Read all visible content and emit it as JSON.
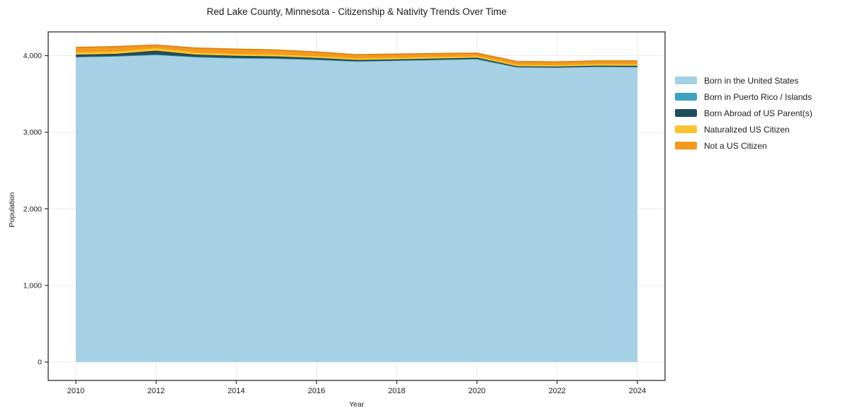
{
  "chart_data": {
    "type": "area",
    "stacked": true,
    "title": "Red Lake County, Minnesota - Citizenship & Nativity Trends Over Time",
    "xlabel": "Year",
    "ylabel": "Population",
    "grid": true,
    "legend_position": "right",
    "x": [
      2010,
      2011,
      2012,
      2013,
      2014,
      2015,
      2016,
      2017,
      2018,
      2019,
      2020,
      2021,
      2022,
      2023,
      2024
    ],
    "series": [
      {
        "name": "Born in the United States",
        "color": "#a6d0e4",
        "line_color": "#86bcd6",
        "values": [
          3985,
          3995,
          4015,
          3985,
          3970,
          3965,
          3950,
          3928,
          3938,
          3948,
          3958,
          3852,
          3848,
          3858,
          3855
        ]
      },
      {
        "name": "Born in Puerto Rico / Islands",
        "color": "#3ea1c0",
        "line_color": "#338aa6",
        "values": [
          0,
          0,
          0,
          0,
          0,
          0,
          0,
          0,
          0,
          0,
          0,
          0,
          0,
          0,
          0
        ]
      },
      {
        "name": "Born Abroad of US Parent(s)",
        "color": "#204e5e",
        "line_color": "#173a47",
        "values": [
          28,
          28,
          50,
          28,
          28,
          25,
          20,
          15,
          14,
          14,
          16,
          10,
          10,
          12,
          12
        ]
      },
      {
        "name": "Naturalized US Citizen",
        "color": "#fcc330",
        "line_color": "#e2a616",
        "values": [
          36,
          38,
          38,
          34,
          32,
          32,
          30,
          28,
          28,
          28,
          26,
          26,
          25,
          25,
          28
        ]
      },
      {
        "name": "Not a US Citizen",
        "color": "#f5981f",
        "line_color": "#da820e",
        "values": [
          58,
          58,
          35,
          52,
          55,
          52,
          48,
          42,
          40,
          38,
          32,
          36,
          36,
          36,
          36
        ]
      }
    ],
    "x_ticks": {
      "values": [
        2010,
        2012,
        2014,
        2016,
        2018,
        2020,
        2022,
        2024
      ],
      "labels": [
        "2010",
        "2012",
        "2014",
        "2016",
        "2018",
        "2020",
        "2022",
        "2024"
      ]
    },
    "y_ticks": {
      "values": [
        0,
        1000,
        2000,
        3000,
        4000
      ],
      "labels": [
        "0",
        "1,000",
        "2,000",
        "3,000",
        "4,000"
      ]
    },
    "x_range": [
      2009.31,
      2024.69
    ],
    "y_range": [
      -240,
      4310
    ],
    "colors": {
      "grid": "#ebebeb",
      "border": "#2d2d2d",
      "text": "#1a1a1a",
      "background": "#ffffff"
    }
  }
}
